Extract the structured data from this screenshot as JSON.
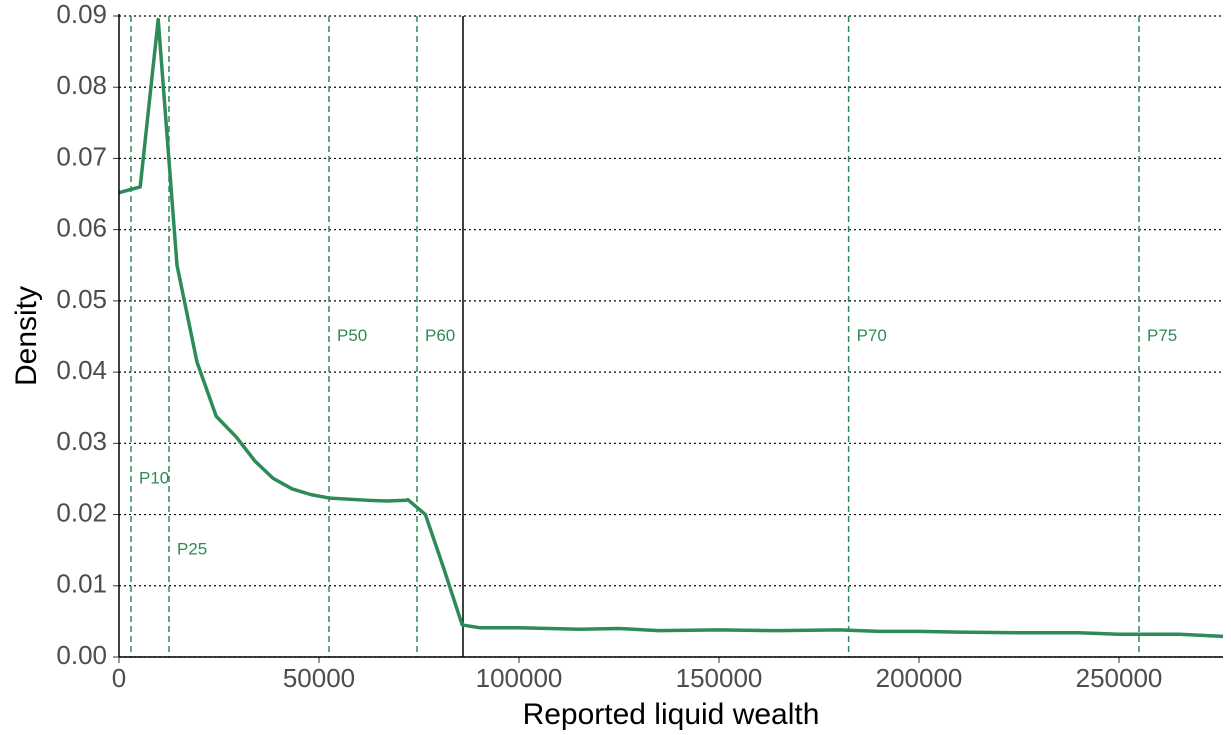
{
  "chart_data": {
    "type": "line",
    "x_label": "Reported liquid wealth",
    "y_label": "Density",
    "x": [
      0,
      5300,
      9800,
      14500,
      19500,
      24300,
      29300,
      34000,
      38500,
      43300,
      48000,
      52800,
      62300,
      67000,
      71800,
      72200,
      76600,
      81100,
      85800,
      90300,
      100000,
      115000,
      125000,
      135000,
      150000,
      165000,
      180000,
      190000,
      200000,
      210000,
      225000,
      240000,
      250000,
      265000,
      276000
    ],
    "series": [
      {
        "name": "Density",
        "color": "#2e8b57",
        "values": [
          0.0652,
          0.066,
          0.0895,
          0.055,
          0.0414,
          0.0338,
          0.0309,
          0.0275,
          0.0251,
          0.0236,
          0.0228,
          0.0223,
          0.022,
          0.0219,
          0.022,
          0.0221,
          0.02,
          0.0126,
          0.0045,
          0.0041,
          0.0041,
          0.0039,
          0.004,
          0.0037,
          0.0038,
          0.0037,
          0.0038,
          0.0036,
          0.0036,
          0.0035,
          0.0034,
          0.0034,
          0.0032,
          0.0032,
          0.0029
        ]
      }
    ],
    "vlines": [
      {
        "x": 3000,
        "label": "P10",
        "label_y": 0.025
      },
      {
        "x": 12500,
        "label": "P25",
        "label_y": 0.015
      },
      {
        "x": 52500,
        "label": "P50",
        "label_y": 0.045
      },
      {
        "x": 74500,
        "label": "P60",
        "label_y": 0.045
      },
      {
        "x": 182400,
        "label": "P70",
        "label_y": 0.045
      },
      {
        "x": 255000,
        "label": "P75",
        "label_y": 0.045
      }
    ],
    "threshold": 86000,
    "xlim": [
      0,
      276000
    ],
    "xticks": [
      0,
      50000,
      100000,
      150000,
      200000,
      250000
    ],
    "ylim": [
      0,
      0.09
    ],
    "yticks": [
      {
        "value": 0,
        "label": "0.00"
      },
      0.01,
      0.02,
      0.03,
      0.04,
      0.05,
      0.06,
      0.07,
      0.08,
      0.09
    ],
    "grid": true
  }
}
